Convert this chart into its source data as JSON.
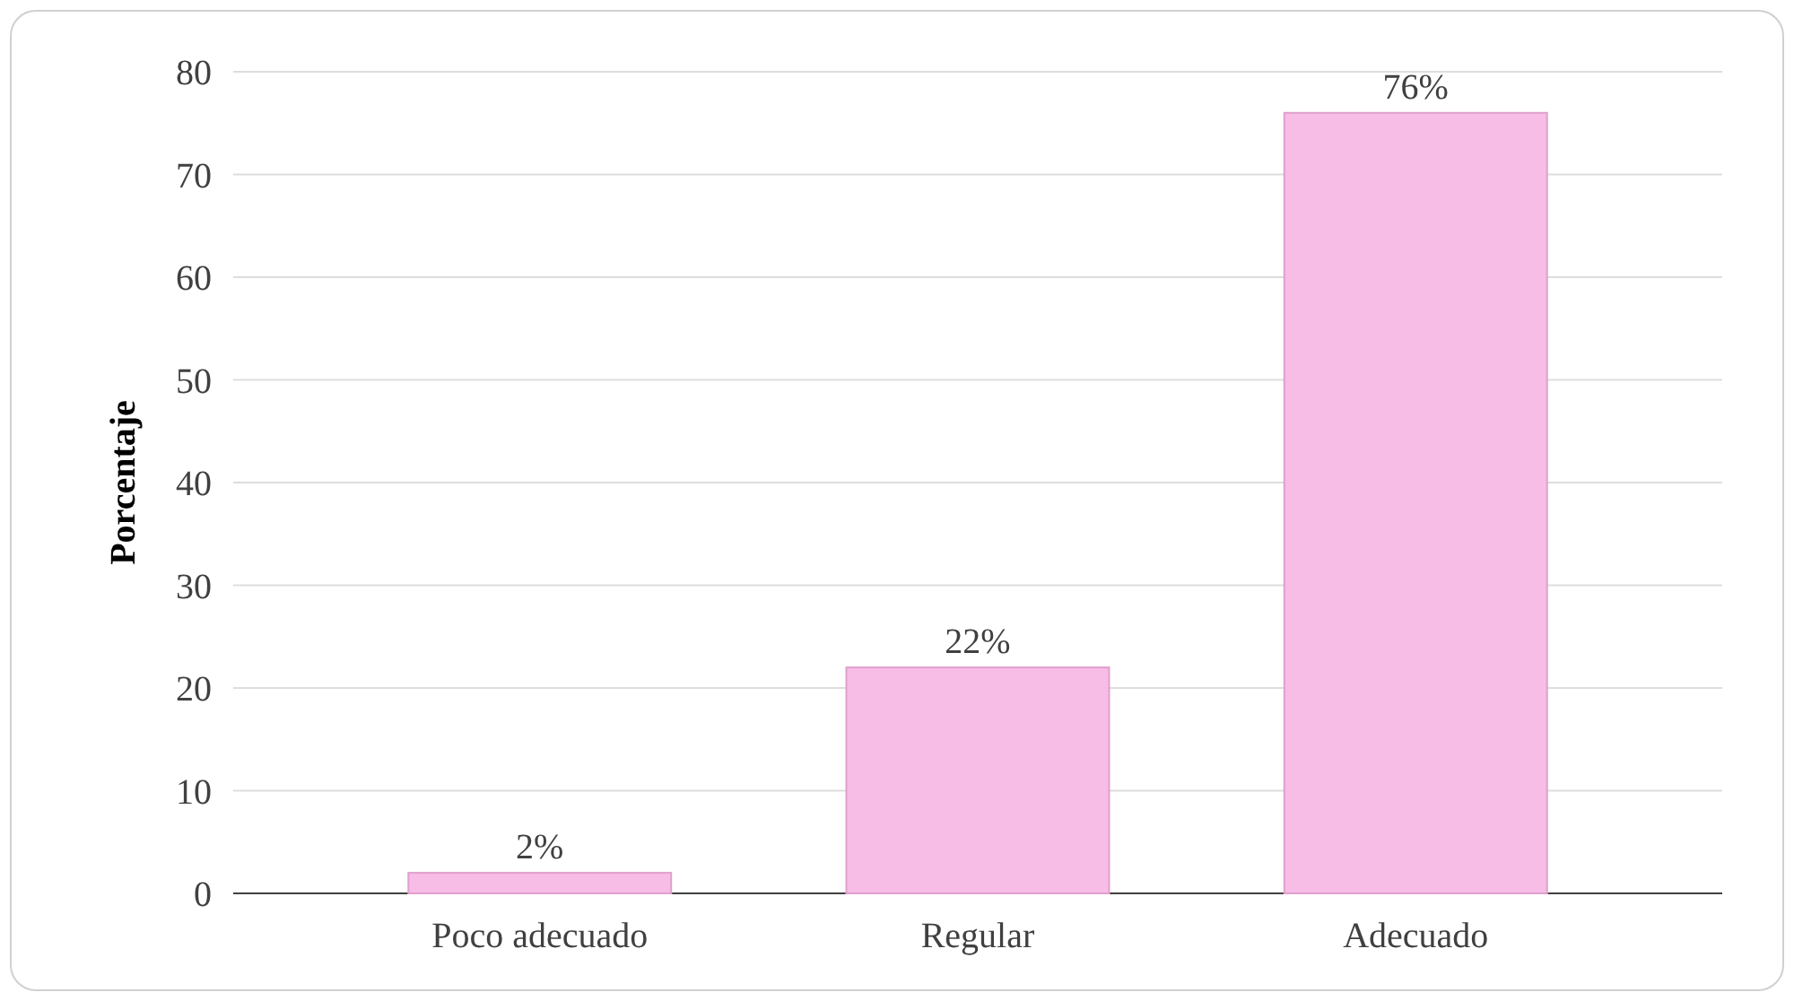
{
  "chart_data": {
    "type": "bar",
    "ylabel": "Porcentaje",
    "categories": [
      "Poco adecuado",
      "Regular",
      "Adecuado"
    ],
    "values": [
      2,
      22,
      76
    ],
    "value_labels": [
      "2%",
      "22%",
      "76%"
    ],
    "color": "#f7bde6",
    "ylim": [
      0,
      80
    ],
    "yticks": [
      0,
      10,
      20,
      30,
      40,
      50,
      60,
      70,
      80
    ],
    "grid": "y"
  }
}
